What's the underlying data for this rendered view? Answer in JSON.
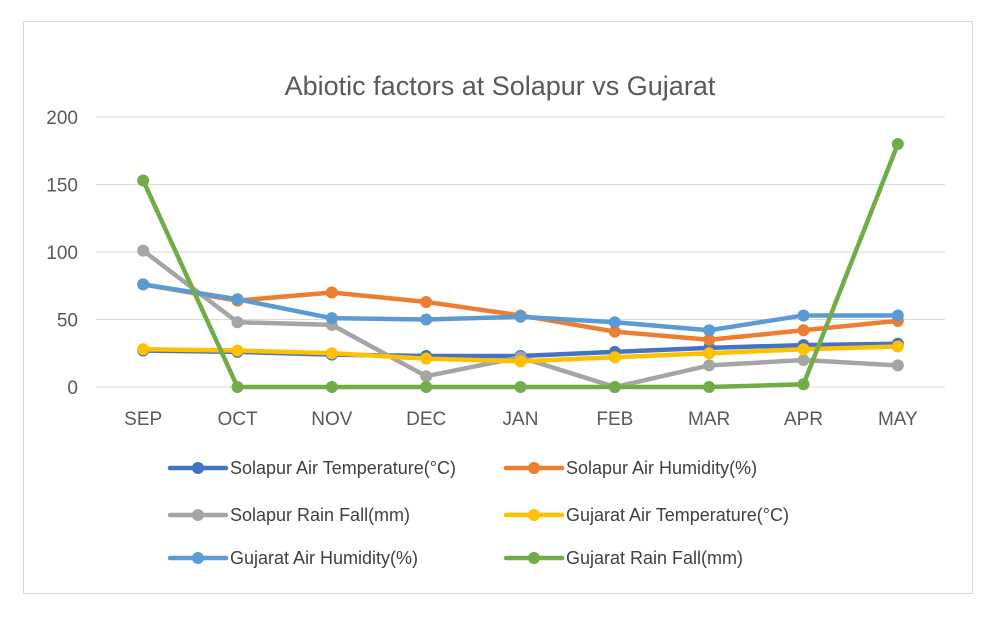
{
  "chart_data": {
    "type": "line",
    "title": "Abiotic factors at Solapur vs Gujarat",
    "categories": [
      "SEP",
      "OCT",
      "NOV",
      "DEC",
      "JAN",
      "FEB",
      "MAR",
      "APR",
      "MAY"
    ],
    "ylim": [
      0,
      200
    ],
    "yticks": [
      "0",
      "50",
      "100",
      "150",
      "200"
    ],
    "grid": true,
    "legend_position": "bottom",
    "series": [
      {
        "name": "Solapur Air Temperature(°C)",
        "color": "#4472C4",
        "values": [
          27,
          26,
          24,
          23,
          23,
          26,
          29,
          31,
          32
        ]
      },
      {
        "name": "Solapur Air Humidity(%)",
        "color": "#ED7D31",
        "values": [
          76,
          64,
          70,
          63,
          53,
          41,
          35,
          42,
          49
        ]
      },
      {
        "name": "Solapur Rain Fall(mm)",
        "color": "#A5A5A5",
        "values": [
          101,
          48,
          46,
          8,
          22,
          0,
          16,
          20,
          16
        ]
      },
      {
        "name": "Gujarat Air Temperature(°C)",
        "color": "#FFC000",
        "values": [
          28,
          27,
          25,
          21,
          19,
          22,
          25,
          28,
          30
        ]
      },
      {
        "name": "Gujarat Air Humidity(%)",
        "color": "#5B9BD5",
        "values": [
          76,
          65,
          51,
          50,
          52,
          48,
          42,
          53,
          53
        ]
      },
      {
        "name": "Gujarat Rain Fall(mm)",
        "color": "#70AD47",
        "values": [
          153,
          0,
          0,
          0,
          0,
          0,
          0,
          2,
          180
        ]
      }
    ]
  }
}
